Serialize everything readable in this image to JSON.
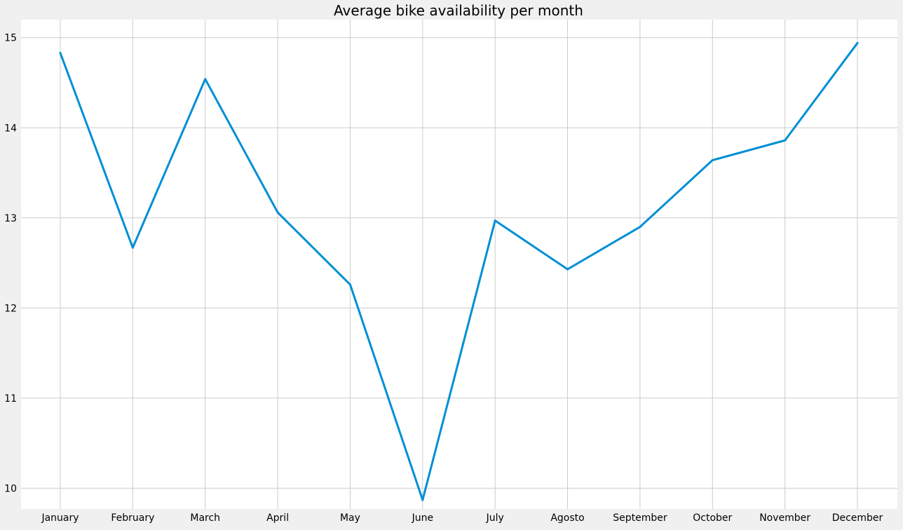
{
  "chart_data": {
    "type": "line",
    "title": "Average bike availability per month",
    "xlabel": "",
    "ylabel": "",
    "categories": [
      "January",
      "February",
      "March",
      "April",
      "May",
      "June",
      "July",
      "Agosto",
      "September",
      "October",
      "November",
      "December"
    ],
    "series": [
      {
        "values": [
          14.83,
          12.67,
          14.54,
          13.06,
          12.26,
          9.87,
          12.97,
          12.43,
          12.9,
          13.64,
          13.86,
          14.94
        ],
        "color": "#008fd5"
      }
    ],
    "yticks": [
      "10",
      "11",
      "12",
      "13",
      "14",
      "15"
    ],
    "ylim": [
      9.77,
      15.2
    ],
    "grid": true,
    "legend": "none",
    "colors": {
      "background": "#f0f0f0",
      "plot_background": "#ffffff",
      "grid": "#cbcbcb",
      "line": "#008fd5"
    }
  }
}
